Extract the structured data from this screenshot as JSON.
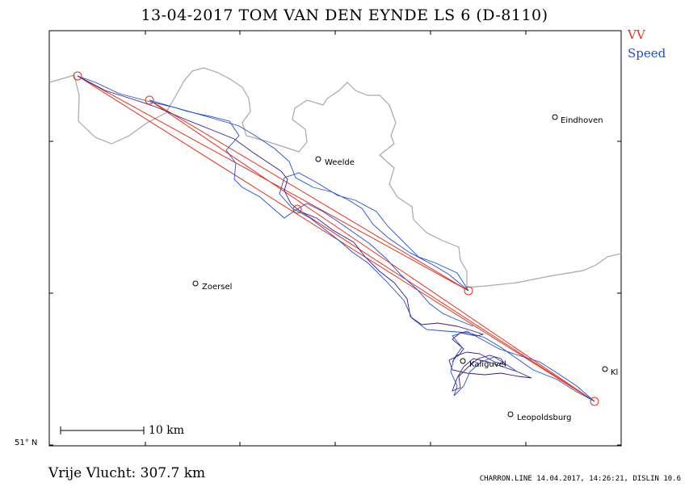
{
  "title": "13-04-2017   TOM VAN DEN EYNDE   LS 6 (D-8110)",
  "legend": {
    "vv": "VV",
    "speed": "Speed",
    "vv_color": "#e8301a",
    "speed_color": "#1d4fd8",
    "track_color": "#3a1c8c"
  },
  "distance_label": "Vrije Vlucht:  307.7 km",
  "footer": "CHARRON.LINE 14.04.2017, 14:26:21, DISLIN 10.6",
  "latitude_label": "51° N",
  "scale_label": "10 km",
  "towns": [
    {
      "name": "Eindhoven"
    },
    {
      "name": "Weelde"
    },
    {
      "name": "Zoersel"
    },
    {
      "name": "Kaliguvel"
    },
    {
      "name": "Kl"
    },
    {
      "name": "Leopoldsburg"
    }
  ]
}
